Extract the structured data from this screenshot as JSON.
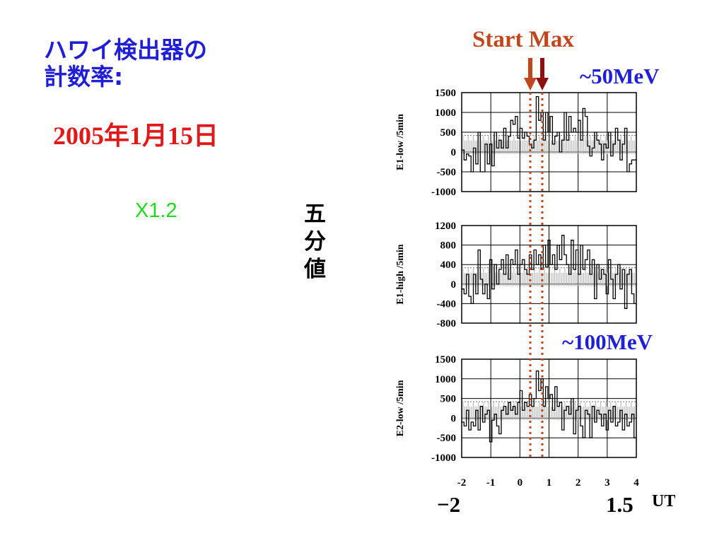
{
  "title_line1": "ハワイ検出器の",
  "title_line2": "計数率:",
  "date": "2005年1月15日",
  "flare_class": "X1.2",
  "vertical_label": [
    "五",
    "分",
    "値"
  ],
  "markers": {
    "start": "Start",
    "max": "Max",
    "start_color": "#c0461e",
    "max_color": "#8b1010"
  },
  "energy_labels": {
    "panel1": "~50MeV",
    "panel3": "~100MeV"
  },
  "bottom_ticks": {
    "left": "−2",
    "right": "1.5",
    "unit": "UT"
  },
  "colors": {
    "title": "#1f1fd6",
    "date": "#e01a1a",
    "flare": "#20d820",
    "marker_line": "#c0461e"
  },
  "chart_data": [
    {
      "type": "line",
      "ylabel": "E1-low /5min",
      "ylim": [
        -1000,
        1500
      ],
      "yticks": [
        "1500",
        "1000",
        "500",
        "0",
        "-500",
        "-1000"
      ],
      "ytick_values": [
        1500,
        1000,
        500,
        0,
        -500,
        -1000
      ],
      "xlim": [
        -2,
        4
      ],
      "grid": true,
      "values": [
        50,
        -200,
        -50,
        -100,
        -500,
        100,
        -300,
        500,
        -500,
        -500,
        200,
        -300,
        200,
        -350,
        500,
        100,
        300,
        100,
        600,
        100,
        400,
        800,
        700,
        900,
        350,
        600,
        350,
        500,
        400,
        200,
        100,
        300,
        1400,
        800,
        1000,
        300,
        1000,
        500,
        900,
        200,
        400,
        500,
        0,
        300,
        1000,
        300,
        900,
        500,
        600,
        500,
        800,
        300,
        1100,
        900,
        150,
        -100,
        100,
        500,
        300,
        200,
        -200,
        200,
        100,
        500,
        -100,
        200,
        600,
        300,
        -200,
        200,
        600,
        -500,
        -300,
        -200,
        -200
      ]
    },
    {
      "type": "line",
      "ylabel": "E1-high /5min",
      "ylim": [
        -800,
        1200
      ],
      "yticks": [
        "1200",
        "800",
        "400",
        "0",
        "-400",
        "-800"
      ],
      "ytick_values": [
        1200,
        800,
        400,
        0,
        -400,
        -800
      ],
      "xlim": [
        -2,
        4
      ],
      "grid": true,
      "values": [
        -100,
        -200,
        200,
        -250,
        -400,
        200,
        -200,
        700,
        100,
        -200,
        0,
        -300,
        500,
        -100,
        400,
        0,
        300,
        500,
        200,
        600,
        100,
        500,
        400,
        700,
        200,
        400,
        500,
        300,
        200,
        600,
        300,
        700,
        400,
        600,
        300,
        800,
        350,
        900,
        400,
        600,
        300,
        800,
        500,
        1000,
        600,
        400,
        200,
        900,
        300,
        700,
        200,
        800,
        300,
        500,
        700,
        200,
        500,
        -300,
        400,
        100,
        300,
        200,
        -200,
        500,
        100,
        -300,
        200,
        400,
        -100,
        300,
        -500,
        200,
        300,
        -200,
        -400
      ]
    },
    {
      "type": "line",
      "ylabel": "E2-low /5min",
      "ylim": [
        -1000,
        1500
      ],
      "yticks": [
        "1500",
        "1000",
        "500",
        "0",
        "-500",
        "-1000"
      ],
      "ytick_values": [
        1500,
        1000,
        500,
        0,
        -500,
        -1000
      ],
      "xlim": [
        -2,
        4
      ],
      "grid": true,
      "values": [
        -100,
        -200,
        200,
        -300,
        -100,
        -200,
        200,
        -300,
        300,
        -100,
        100,
        200,
        -600,
        -50,
        100,
        -200,
        -400,
        200,
        300,
        100,
        400,
        200,
        300,
        100,
        400,
        700,
        200,
        400,
        300,
        600,
        300,
        500,
        1200,
        700,
        1000,
        300,
        800,
        500,
        600,
        200,
        800,
        300,
        400,
        -300,
        200,
        300,
        100,
        500,
        -400,
        200,
        300,
        -200,
        -500,
        200,
        100,
        -500,
        300,
        -100,
        200,
        100,
        -200,
        100,
        -300,
        200,
        -100,
        300,
        -200,
        -100,
        200,
        -300,
        100,
        -200,
        -100,
        100,
        -500
      ]
    }
  ],
  "x_axis": {
    "ticks": [
      "-2",
      "-1",
      "0",
      "1",
      "2",
      "3",
      "4"
    ],
    "tick_values": [
      -2,
      -1,
      0,
      1,
      2,
      3,
      4
    ]
  }
}
